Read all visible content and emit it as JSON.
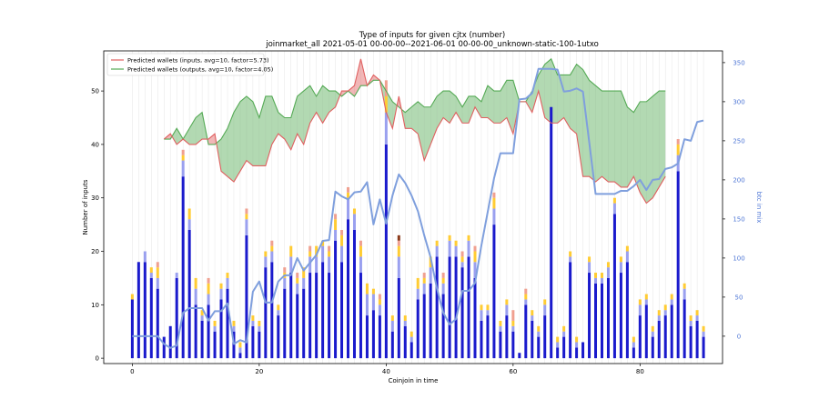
{
  "chart_data": {
    "type": "bar",
    "title": "Type of inputs for given cjtx (number)",
    "subtitle": "joinmarket_all 2021-05-01 00-00-00--2021-06-01 00-00-00_unknown-static-100-1utxo",
    "xlabel": "Coinjoin in time",
    "ylabel": "Number of inputs",
    "y2label": "btc in mix",
    "xlim": [
      -4.5,
      93
    ],
    "ylim": [
      -1,
      57.5
    ],
    "y2lim": [
      -35,
      365
    ],
    "xticks": [
      0,
      20,
      40,
      60,
      80
    ],
    "yticks": [
      0,
      10,
      20,
      30,
      40,
      50
    ],
    "y2ticks": [
      0,
      50,
      100,
      150,
      200,
      250,
      300,
      350
    ],
    "x": [
      0,
      1,
      2,
      3,
      4,
      5,
      6,
      7,
      8,
      9,
      10,
      11,
      12,
      13,
      14,
      15,
      16,
      17,
      18,
      19,
      20,
      21,
      22,
      23,
      24,
      25,
      26,
      27,
      28,
      29,
      30,
      31,
      32,
      33,
      34,
      35,
      36,
      37,
      38,
      39,
      40,
      41,
      42,
      43,
      44,
      45,
      46,
      47,
      48,
      49,
      50,
      51,
      52,
      53,
      54,
      55,
      56,
      57,
      58,
      59,
      60,
      61,
      62,
      63,
      64,
      65,
      66,
      67,
      68,
      69,
      70,
      71,
      72,
      73,
      74,
      75,
      76,
      77,
      78,
      79,
      80,
      81,
      82,
      83,
      84,
      85,
      86,
      87,
      88,
      89,
      90
    ],
    "series": [
      {
        "name": "",
        "color": "#1a1acc",
        "values": [
          11,
          18,
          18,
          15,
          13,
          4,
          6,
          15,
          34,
          24,
          10,
          7,
          10,
          5,
          11,
          13,
          5,
          1,
          23,
          6,
          5,
          17,
          18,
          8,
          13,
          16,
          12,
          13,
          16,
          16,
          18,
          16,
          22,
          18,
          26,
          24,
          16,
          8,
          9,
          8,
          40,
          5,
          15,
          6,
          3,
          11,
          12,
          14,
          19,
          12,
          19,
          19,
          17,
          19,
          15,
          7,
          8,
          25,
          5,
          8,
          5,
          1,
          10,
          7,
          4,
          8,
          47,
          2,
          4,
          18,
          2,
          3,
          16,
          14,
          14,
          15,
          27,
          16,
          18,
          2,
          8,
          10,
          4,
          7,
          8,
          10,
          35,
          11,
          6,
          7,
          4
        ]
      },
      {
        "name": "",
        "color": "#9aa0ef",
        "values": [
          0,
          0,
          2,
          1,
          2,
          0,
          0,
          1,
          3,
          2,
          3,
          1,
          2,
          1,
          2,
          2,
          1,
          1,
          3,
          1,
          1,
          2,
          2,
          1,
          2,
          3,
          2,
          2,
          3,
          3,
          3,
          3,
          2,
          3,
          4,
          3,
          3,
          4,
          3,
          2,
          6,
          2,
          4,
          1,
          1,
          2,
          2,
          3,
          2,
          2,
          3,
          2,
          1,
          3,
          3,
          2,
          1,
          3,
          1,
          2,
          1,
          0,
          1,
          1,
          1,
          2,
          0,
          1,
          1,
          1,
          1,
          0,
          2,
          1,
          1,
          2,
          2,
          2,
          2,
          1,
          2,
          1,
          1,
          1,
          1,
          1,
          3,
          2,
          1,
          1,
          1
        ]
      },
      {
        "name": "",
        "color": "#ffcc33",
        "values": [
          1,
          0,
          0,
          1,
          2,
          0,
          0,
          0,
          1,
          2,
          2,
          1,
          2,
          1,
          1,
          1,
          1,
          1,
          1,
          1,
          1,
          1,
          1,
          1,
          1,
          2,
          1,
          2,
          1,
          2,
          1,
          1,
          2,
          2,
          1,
          1,
          2,
          2,
          1,
          1,
          3,
          1,
          2,
          1,
          1,
          2,
          1,
          2,
          1,
          1,
          1,
          1,
          1,
          1,
          2,
          1,
          1,
          2,
          1,
          1,
          1,
          0,
          1,
          1,
          1,
          1,
          0,
          1,
          1,
          1,
          1,
          0,
          1,
          1,
          1,
          1,
          1,
          1,
          1,
          1,
          1,
          1,
          1,
          1,
          1,
          1,
          2,
          1,
          1,
          1,
          1
        ]
      },
      {
        "name": "",
        "color": "#f0a090",
        "values": [
          0,
          0,
          0,
          0,
          1,
          0,
          0,
          0,
          1,
          0,
          0,
          0,
          1,
          0,
          0,
          0,
          0,
          0,
          1,
          0,
          0,
          0,
          1,
          0,
          1,
          0,
          1,
          0,
          1,
          0,
          0,
          1,
          1,
          1,
          1,
          0,
          1,
          0,
          0,
          1,
          3,
          0,
          1,
          0,
          0,
          0,
          1,
          0,
          0,
          1,
          0,
          0,
          1,
          0,
          1,
          0,
          0,
          1,
          0,
          0,
          2,
          0,
          1,
          0,
          0,
          0,
          0,
          0,
          0,
          0,
          0,
          0,
          0,
          0,
          0,
          0,
          0,
          0,
          0,
          0,
          0,
          0,
          0,
          0,
          0,
          0,
          1,
          0,
          0,
          0,
          0
        ]
      },
      {
        "name": "",
        "color": "#8b3a1a",
        "values": [
          0,
          0,
          0,
          0,
          0,
          0,
          0,
          0,
          0,
          0,
          0,
          0,
          0,
          0,
          0,
          0,
          0,
          0,
          0,
          0,
          0,
          0,
          0,
          0,
          0,
          0,
          0,
          0,
          0,
          0,
          0,
          0,
          0,
          0,
          0,
          0,
          0,
          0,
          0,
          0,
          0,
          0,
          1,
          0,
          0,
          0,
          0,
          0,
          0,
          0,
          0,
          0,
          0,
          0,
          0,
          0,
          0,
          0,
          0,
          0,
          0,
          0,
          0,
          0,
          0,
          0,
          0,
          0,
          0,
          0,
          0,
          0,
          0,
          0,
          0,
          0,
          0,
          0,
          0,
          0,
          0,
          0,
          0,
          0,
          0,
          0,
          0,
          0,
          0,
          0,
          0
        ]
      }
    ],
    "wallets_inputs": {
      "name": "Predicted wallets (inputs, avg=10, factor=5.73)",
      "color": "#e06060",
      "x": [
        5,
        6,
        7,
        8,
        9,
        10,
        11,
        12,
        13,
        14,
        15,
        16,
        17,
        18,
        19,
        20,
        21,
        22,
        23,
        24,
        25,
        26,
        27,
        28,
        29,
        30,
        31,
        32,
        33,
        34,
        35,
        36,
        37,
        38,
        39,
        40,
        41,
        42,
        43,
        44,
        45,
        46,
        47,
        48,
        49,
        50,
        51,
        52,
        53,
        54,
        55,
        56,
        57,
        58,
        59,
        60,
        61,
        62,
        63,
        64,
        65,
        66,
        67,
        68,
        69,
        70,
        71,
        72,
        73,
        74,
        75,
        76,
        77,
        78,
        79,
        80,
        81,
        82,
        83,
        84
      ],
      "values": [
        41,
        42,
        40,
        41,
        40,
        40,
        41,
        41,
        42,
        35,
        34,
        33,
        35,
        37,
        36,
        36,
        36,
        40,
        42,
        41,
        39,
        42,
        40,
        44,
        46,
        44,
        46,
        47,
        50,
        50,
        51,
        56,
        51,
        53,
        52,
        46,
        43,
        49,
        43,
        43,
        42,
        37,
        40,
        43,
        45,
        44,
        46,
        44,
        44,
        47,
        45,
        45,
        44,
        44,
        45,
        42,
        48,
        48,
        46,
        50,
        45,
        44,
        44,
        45,
        43,
        42,
        34,
        34,
        33,
        34,
        33,
        33,
        32,
        32,
        34,
        31,
        29,
        30,
        32,
        34
      ]
    },
    "wallets_outputs": {
      "name": "Predicted wallets (outputs, avg=10, factor=4.05)",
      "color": "#55aa55",
      "x": [
        5,
        6,
        7,
        8,
        9,
        10,
        11,
        12,
        13,
        14,
        15,
        16,
        17,
        18,
        19,
        20,
        21,
        22,
        23,
        24,
        25,
        26,
        27,
        28,
        29,
        30,
        31,
        32,
        33,
        34,
        35,
        36,
        37,
        38,
        39,
        40,
        41,
        42,
        43,
        44,
        45,
        46,
        47,
        48,
        49,
        50,
        51,
        52,
        53,
        54,
        55,
        56,
        57,
        58,
        59,
        60,
        61,
        62,
        63,
        64,
        65,
        66,
        67,
        68,
        69,
        70,
        71,
        72,
        73,
        74,
        75,
        76,
        77,
        78,
        79,
        80,
        81,
        82,
        83,
        84
      ],
      "values": [
        41,
        41,
        43,
        41,
        43,
        45,
        46,
        40,
        40,
        41,
        43,
        46,
        48,
        49,
        48,
        45,
        49,
        49,
        46,
        45,
        45,
        49,
        50,
        51,
        49,
        51,
        50,
        50,
        49,
        50,
        49,
        51,
        51,
        52,
        52,
        50,
        48,
        47,
        46,
        47,
        48,
        47,
        47,
        49,
        50,
        50,
        49,
        47,
        49,
        49,
        48,
        51,
        50,
        50,
        52,
        52,
        48,
        48,
        50,
        53,
        55,
        56,
        53,
        53,
        53,
        55,
        54,
        52,
        51,
        50,
        50,
        50,
        50,
        47,
        46,
        48,
        48,
        49,
        50,
        50
      ]
    },
    "btc_in_mix": {
      "name": "",
      "color": "#7f9fdd",
      "values": [
        0,
        0,
        0,
        0,
        0,
        -10,
        -15,
        -12,
        30,
        36,
        36,
        36,
        20,
        32,
        32,
        42,
        -10,
        -5,
        -8,
        57,
        70,
        43,
        43,
        70,
        78,
        78,
        100,
        84,
        94,
        104,
        122,
        123,
        185,
        179,
        175,
        184,
        185,
        197,
        143,
        175,
        144,
        180,
        207,
        196,
        180,
        160,
        129,
        101,
        61,
        30,
        15,
        22,
        58,
        58,
        68,
        116,
        159,
        202,
        234,
        234,
        234,
        303,
        304,
        311,
        342,
        342,
        342,
        341,
        313,
        314,
        317,
        313,
        248,
        182,
        182,
        182,
        182,
        186,
        186,
        192,
        200,
        187,
        200,
        201,
        214,
        216,
        221,
        252,
        250,
        274,
        276,
        275
      ]
    }
  }
}
